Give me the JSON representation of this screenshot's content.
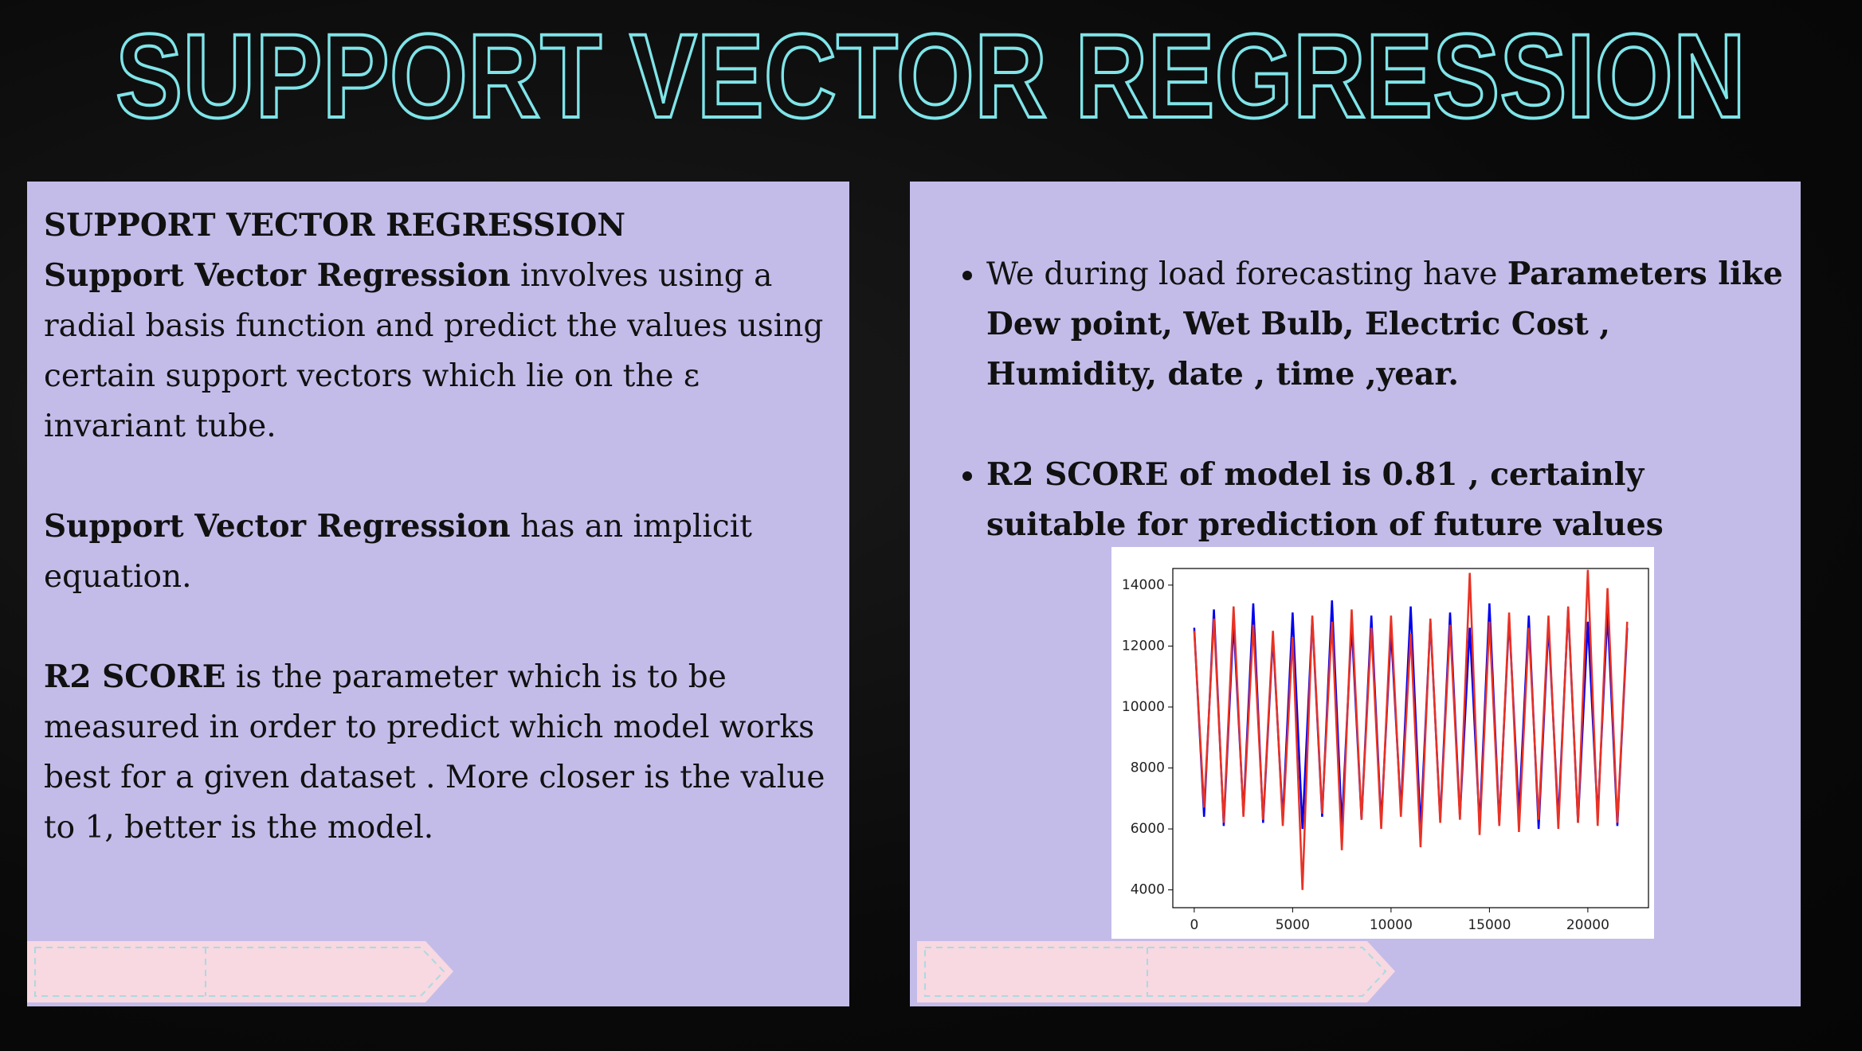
{
  "title": "SUPPORT VECTOR REGRESSION",
  "left_panel": {
    "heading": "SUPPORT VECTOR REGRESSION",
    "paragraphs": [
      {
        "bold": "Support Vector Regression",
        "text": " involves using a radial basis function and predict the values using certain support vectors which lie on the ε invariant tube."
      },
      {
        "bold": "Support Vector Regression",
        "text": " has an implicit equation."
      },
      {
        "bold": "R2 SCORE",
        "text": " is the parameter which is to be measured in order to predict which model works best for a given dataset . More closer is the value to 1, better is the model."
      }
    ]
  },
  "right_panel": {
    "bullets": [
      {
        "text": "We during load forecasting have ",
        "bold": "Parameters like Dew point, Wet Bulb, Electric Cost , Humidity, date , time ,year."
      },
      {
        "bold": "R2 SCORE of model is 0.81 , certainly  suitable for prediction of future values"
      }
    ]
  },
  "chart_data": {
    "type": "line",
    "x": [
      0,
      500,
      1000,
      1500,
      2000,
      2500,
      3000,
      3500,
      4000,
      4500,
      5000,
      5500,
      6000,
      6500,
      7000,
      7500,
      8000,
      8500,
      9000,
      9500,
      10000,
      10500,
      11000,
      11500,
      12000,
      12500,
      13000,
      13500,
      14000,
      14500,
      15000,
      15500,
      16000,
      16500,
      17000,
      17500,
      18000,
      18500,
      19000,
      19500,
      20000,
      20500,
      21000,
      21500,
      22000
    ],
    "series": [
      {
        "color": "#0000ee",
        "values": [
          12600,
          6400,
          13200,
          6100,
          12800,
          6500,
          13400,
          6200,
          12300,
          6300,
          13100,
          6000,
          12900,
          6400,
          13500,
          6100,
          12700,
          6300,
          13000,
          6200,
          12500,
          6600,
          13300,
          6000,
          12800,
          6300,
          13100,
          6400,
          12600,
          6100,
          13400,
          6200,
          12900,
          6500,
          13000,
          6000,
          12700,
          6300,
          13200,
          6200,
          12800,
          6400,
          13100,
          6100,
          12600
        ]
      },
      {
        "color": "#e83225",
        "values": [
          12500,
          6700,
          12900,
          6200,
          13300,
          6400,
          12700,
          6300,
          12500,
          6100,
          12300,
          4000,
          13000,
          6500,
          12800,
          5300,
          13200,
          6300,
          12600,
          6000,
          13000,
          6400,
          12400,
          5400,
          12900,
          6200,
          12700,
          6300,
          14400,
          5800,
          12800,
          6100,
          13100,
          5900,
          12600,
          6300,
          13000,
          6000,
          13300,
          6200,
          14500,
          6100,
          13900,
          6200,
          12800
        ]
      }
    ],
    "xlim": [
      -1088,
      23081
    ],
    "ylim": [
      3416,
      14545
    ],
    "xticks": [
      0,
      5000,
      10000,
      15000,
      20000
    ],
    "yticks": [
      4000,
      6000,
      8000,
      10000,
      12000,
      14000
    ]
  }
}
